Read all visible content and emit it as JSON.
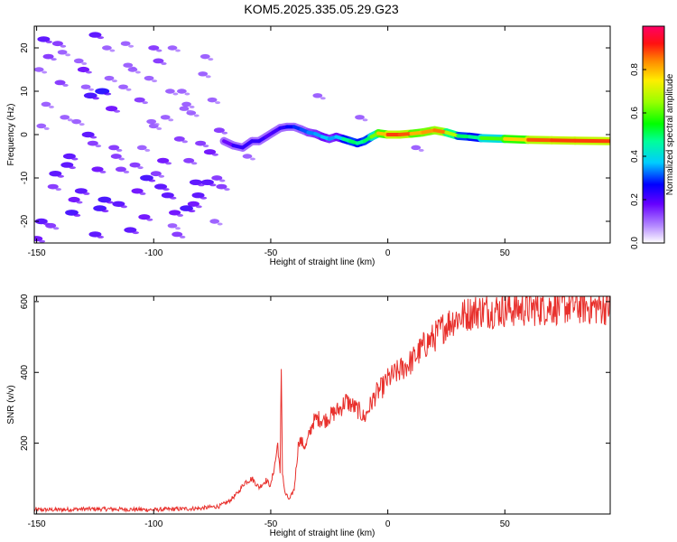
{
  "title": "KOM5.2025.335.05.29.G23",
  "colors": {
    "snr_line": "#e8302c",
    "axis": "#000000"
  },
  "chart_data": [
    {
      "type": "heatmap",
      "title": "KOM5.2025.335.05.29.G23",
      "xlabel": "Height of straight line (km)",
      "ylabel": "Frequency (Hz)",
      "xlim": [
        -151,
        95
      ],
      "ylim": [
        -25,
        25
      ],
      "xticks": [
        -150,
        -100,
        -50,
        0,
        50
      ],
      "yticks": [
        -20,
        -10,
        0,
        10,
        20
      ],
      "colorbar": {
        "label": "Normalized spectral amplitude",
        "range": [
          0,
          1
        ],
        "ticks": [
          0.0,
          0.2,
          0.4,
          0.6,
          0.8
        ],
        "tick_labels": [
          "0.0",
          "0.2",
          "0.4",
          "0.6",
          "0.8"
        ]
      },
      "ridge": {
        "x": [
          -70,
          -66,
          -62,
          -58,
          -55,
          -52,
          -49,
          -46,
          -43,
          -40,
          -37,
          -34,
          -31,
          -28,
          -25,
          -22,
          -19,
          -16,
          -13,
          -10,
          -7,
          -4,
          0,
          5,
          10,
          15,
          20,
          25,
          30,
          35,
          40,
          50,
          60,
          70,
          80,
          95
        ],
        "y": [
          -1.5,
          -2.5,
          -3.0,
          -1.5,
          -1.5,
          -0.5,
          0.5,
          1.5,
          1.8,
          1.8,
          1.2,
          0.5,
          0.2,
          -0.5,
          -1.0,
          -0.5,
          -1.0,
          -1.5,
          -2.0,
          -1.5,
          -0.5,
          0.3,
          0.0,
          0.0,
          0.2,
          0.5,
          1.0,
          0.5,
          -0.3,
          -0.5,
          -0.8,
          -1.0,
          -1.2,
          -1.3,
          -1.4,
          -1.5
        ],
        "amplitude": [
          0.15,
          0.2,
          0.25,
          0.2,
          0.25,
          0.2,
          0.2,
          0.22,
          0.25,
          0.28,
          0.3,
          0.32,
          0.35,
          0.35,
          0.4,
          0.3,
          0.45,
          0.5,
          0.5,
          0.45,
          0.55,
          0.7,
          0.88,
          0.9,
          0.85,
          0.75,
          0.9,
          0.8,
          0.55,
          0.45,
          0.5,
          0.7,
          0.85,
          0.9,
          0.88,
          0.9
        ]
      },
      "scatter_blobs": {
        "x": [
          -147,
          -145,
          -140,
          -136,
          -133,
          -130,
          -127,
          -125,
          -122,
          -120,
          -118,
          -148,
          -143,
          -138,
          -135,
          -128,
          -124,
          -121,
          -117,
          -113,
          -110,
          -106,
          -103,
          -100,
          -98,
          -96,
          -94,
          -92,
          -89,
          -86,
          -84,
          -82,
          -79,
          -76,
          -74,
          -72,
          -146,
          -142,
          -139,
          -131,
          -126,
          -119,
          -115,
          -111,
          -108,
          -104,
          -101,
          -97,
          -93,
          -90,
          -87,
          -83,
          -80,
          -77,
          -75,
          -144,
          -137,
          -132,
          -123,
          -116,
          -112,
          -107,
          -102,
          -99,
          -95,
          -91,
          -88,
          -85,
          -81,
          -78,
          -73,
          -148,
          -141,
          -134,
          -129,
          -125,
          -114,
          -109,
          -105,
          -100,
          -92,
          -86,
          -71,
          -60,
          -30,
          -12,
          12,
          -150,
          -149
        ],
        "y": [
          22,
          18,
          12,
          -5,
          3,
          15,
          9,
          23,
          10,
          20,
          6,
          -20,
          -12,
          4,
          -18,
          0,
          -8,
          -15,
          -3,
          11,
          -22,
          8,
          -10,
          2,
          17,
          -6,
          -14,
          20,
          -1,
          -17,
          5,
          -11,
          14,
          -4,
          -20,
          1,
          7,
          -9,
          19,
          -13,
          -2,
          13,
          -16,
          16,
          -7,
          -19,
          3,
          -12,
          10,
          -23,
          6,
          -16,
          -2,
          -11,
          8,
          -21,
          -7,
          17,
          -17,
          -5,
          21,
          -13,
          13,
          -9,
          4,
          -18,
          10,
          -6,
          -14,
          18,
          -10,
          2,
          21,
          -15,
          11,
          -23,
          -8,
          15,
          -3,
          20,
          -21,
          7,
          -12,
          -5,
          9,
          4,
          -3,
          -24,
          15
        ],
        "amplitude": [
          0.2,
          0.15,
          0.15,
          0.2,
          0.12,
          0.18,
          0.22,
          0.2,
          0.25,
          0.12,
          0.18,
          0.2,
          0.15,
          0.12,
          0.22,
          0.2,
          0.18,
          0.22,
          0.15,
          0.12,
          0.2,
          0.15,
          0.22,
          0.12,
          0.15,
          0.18,
          0.2,
          0.12,
          0.15,
          0.22,
          0.12,
          0.2,
          0.12,
          0.18,
          0.12,
          0.15,
          0.12,
          0.2,
          0.12,
          0.2,
          0.15,
          0.12,
          0.2,
          0.12,
          0.15,
          0.18,
          0.12,
          0.2,
          0.12,
          0.15,
          0.12,
          0.18,
          0.15,
          0.2,
          0.12,
          0.15,
          0.2,
          0.12,
          0.22,
          0.15,
          0.12,
          0.18,
          0.12,
          0.15,
          0.12,
          0.18,
          0.12,
          0.15,
          0.2,
          0.12,
          0.15,
          0.12,
          0.15,
          0.18,
          0.12,
          0.2,
          0.15,
          0.12,
          0.12,
          0.15,
          0.12,
          0.12,
          0.15,
          0.12,
          0.12,
          0.12,
          0.12,
          0.18,
          0.12
        ]
      }
    },
    {
      "type": "line",
      "xlabel": "Height of straight line (km)",
      "ylabel": "SNR (v/v)",
      "xlim": [
        -151,
        95
      ],
      "ylim": [
        0,
        615
      ],
      "xticks": [
        -150,
        -100,
        -50,
        0,
        50
      ],
      "yticks": [
        200,
        400,
        600
      ],
      "series": [
        {
          "name": "SNR",
          "x": [
            -151,
            -140,
            -130,
            -120,
            -110,
            -100,
            -90,
            -80,
            -72,
            -68,
            -64,
            -61,
            -58,
            -55,
            -52,
            -50,
            -48,
            -47,
            -46,
            -45.5,
            -45,
            -44,
            -42,
            -40,
            -38,
            -35,
            -32,
            -30,
            -27,
            -25,
            -22,
            -20,
            -18,
            -15,
            -12,
            -10,
            -8,
            -5,
            -2,
            0,
            3,
            6,
            10,
            13,
            16,
            20,
            24,
            28,
            32,
            36,
            40,
            45,
            50,
            60,
            70,
            80,
            88,
            95
          ],
          "y": [
            12,
            12,
            14,
            14,
            13,
            12,
            14,
            16,
            22,
            35,
            60,
            90,
            100,
            75,
            95,
            80,
            150,
            200,
            110,
            420,
            120,
            60,
            40,
            70,
            210,
            190,
            260,
            270,
            265,
            275,
            290,
            300,
            320,
            305,
            290,
            270,
            300,
            340,
            360,
            380,
            395,
            410,
            430,
            455,
            480,
            500,
            530,
            550,
            560,
            570,
            575,
            575,
            578,
            580,
            585,
            588,
            585,
            585
          ]
        }
      ]
    }
  ]
}
